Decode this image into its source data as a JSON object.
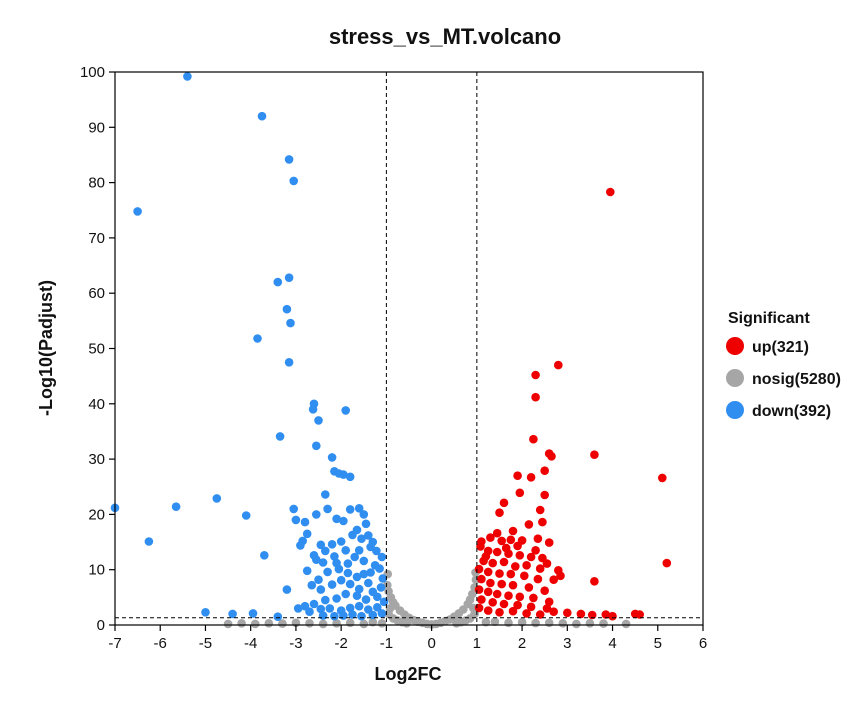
{
  "colors": {
    "up": "#ee0000",
    "nosig": "#a6a6a6",
    "down": "#2f8ef0",
    "axis": "#000000",
    "threshold_line": "#000000"
  },
  "chart_data": {
    "type": "scatter",
    "title": "stress_vs_MT.volcano",
    "xlabel": "Log2FC",
    "ylabel": "-Log10(Padjust)",
    "xlim": [
      -7,
      6
    ],
    "ylim": [
      0,
      100
    ],
    "xticks": [
      -7,
      -6,
      -5,
      -4,
      -3,
      -2,
      -1,
      0,
      1,
      2,
      3,
      4,
      5,
      6
    ],
    "yticks": [
      0,
      10,
      20,
      30,
      40,
      50,
      60,
      70,
      80,
      90,
      100
    ],
    "thresholds": {
      "log2fc": [
        -1,
        1
      ],
      "neg_log10_padj": 1.3
    },
    "legend": {
      "title": "Significant",
      "position": "right",
      "entries": [
        {
          "key": "up",
          "label": "up(321)"
        },
        {
          "key": "nosig",
          "label": "nosig(5280)"
        },
        {
          "key": "down",
          "label": "down(392)"
        }
      ]
    },
    "series": [
      {
        "name": "down",
        "points": [
          [
            -5.4,
            99.2
          ],
          [
            -3.75,
            92
          ],
          [
            -3.15,
            84.2
          ],
          [
            -3.05,
            80.3
          ],
          [
            -6.5,
            74.8
          ],
          [
            -3.15,
            62.8
          ],
          [
            -3.4,
            62
          ],
          [
            -3.2,
            57.1
          ],
          [
            -3.12,
            54.6
          ],
          [
            -3.85,
            51.8
          ],
          [
            -3.15,
            47.5
          ],
          [
            -2.6,
            40
          ],
          [
            -2.62,
            39
          ],
          [
            -1.9,
            38.8
          ],
          [
            -2.5,
            37
          ],
          [
            -3.35,
            34.1
          ],
          [
            -2.55,
            32.4
          ],
          [
            -2.2,
            30.3
          ],
          [
            -2.15,
            27.8
          ],
          [
            -2.05,
            27.4
          ],
          [
            -1.95,
            27.2
          ],
          [
            -1.8,
            26.8
          ],
          [
            -4.75,
            22.9
          ],
          [
            -7.0,
            21.2
          ],
          [
            -5.65,
            21.4
          ],
          [
            -4.1,
            19.8
          ],
          [
            -6.25,
            15.1
          ],
          [
            -3.7,
            12.6
          ],
          [
            -5.0,
            2.3
          ],
          [
            -4.4,
            2.0
          ],
          [
            -3.95,
            2.1
          ],
          [
            -3.4,
            1.5
          ],
          [
            -3.05,
            21
          ],
          [
            -3.0,
            19
          ],
          [
            -2.8,
            18.6
          ],
          [
            -2.75,
            16.5
          ],
          [
            -2.85,
            15.2
          ],
          [
            -2.9,
            14.4
          ],
          [
            -2.55,
            20
          ],
          [
            -2.35,
            23.6
          ],
          [
            -2.3,
            21
          ],
          [
            -2.1,
            19.2
          ],
          [
            -1.95,
            18.8
          ],
          [
            -1.8,
            20.9
          ],
          [
            -1.6,
            21.1
          ],
          [
            -1.5,
            20
          ],
          [
            -1.45,
            18.3
          ],
          [
            -1.65,
            17.2
          ],
          [
            -1.4,
            16.2
          ],
          [
            -1.3,
            15
          ],
          [
            -1.55,
            15.6
          ],
          [
            -1.75,
            16.3
          ],
          [
            -2.0,
            15.1
          ],
          [
            -2.2,
            14.6
          ],
          [
            -2.45,
            14.5
          ],
          [
            -2.6,
            12.6
          ],
          [
            -2.4,
            11.3
          ],
          [
            -2.15,
            12.4
          ],
          [
            -1.9,
            13.5
          ],
          [
            -1.7,
            12.3
          ],
          [
            -1.5,
            11.6
          ],
          [
            -1.25,
            10.8
          ],
          [
            -1.15,
            10.2
          ],
          [
            -1.08,
            8.4
          ],
          [
            -1.12,
            6.8
          ],
          [
            -1.2,
            5.1
          ],
          [
            -1.35,
            9.5
          ],
          [
            -1.5,
            9.2
          ],
          [
            -1.65,
            8.7
          ],
          [
            -1.85,
            9.4
          ],
          [
            -2.05,
            10.1
          ],
          [
            -2.3,
            9.6
          ],
          [
            -2.5,
            8.2
          ],
          [
            -2.65,
            7.2
          ],
          [
            -2.45,
            6.4
          ],
          [
            -2.2,
            7.3
          ],
          [
            -2.0,
            8.1
          ],
          [
            -1.8,
            7.4
          ],
          [
            -1.6,
            6.5
          ],
          [
            -1.4,
            7.6
          ],
          [
            -1.3,
            6.0
          ],
          [
            -1.45,
            4.6
          ],
          [
            -1.65,
            5.3
          ],
          [
            -1.9,
            5.6
          ],
          [
            -2.1,
            4.8
          ],
          [
            -2.35,
            4.5
          ],
          [
            -2.6,
            3.8
          ],
          [
            -2.8,
            3.4
          ],
          [
            -3.2,
            6.4
          ],
          [
            -2.95,
            3.0
          ],
          [
            -2.7,
            2.4
          ],
          [
            -2.45,
            2.9
          ],
          [
            -2.25,
            3.0
          ],
          [
            -2.0,
            2.6
          ],
          [
            -1.8,
            3.1
          ],
          [
            -1.6,
            3.4
          ],
          [
            -1.4,
            2.8
          ],
          [
            -1.2,
            3.2
          ],
          [
            -1.1,
            2.1
          ],
          [
            -1.3,
            1.8
          ],
          [
            -1.55,
            1.6
          ],
          [
            -1.75,
            1.9
          ],
          [
            -1.95,
            1.7
          ],
          [
            -2.15,
            1.6
          ],
          [
            -2.4,
            1.7
          ],
          [
            -1.05,
            4.2
          ],
          [
            -1.1,
            12.3
          ],
          [
            -1.22,
            13.4
          ],
          [
            -1.35,
            14.1
          ],
          [
            -1.6,
            13.5
          ],
          [
            -1.85,
            11.1
          ],
          [
            -2.1,
            11.2
          ],
          [
            -2.35,
            13.4
          ],
          [
            -2.55,
            11.8
          ],
          [
            -2.75,
            9.8
          ]
        ]
      },
      {
        "name": "up",
        "points": [
          [
            3.95,
            78.3
          ],
          [
            2.8,
            47
          ],
          [
            2.3,
            45.2
          ],
          [
            2.3,
            41.2
          ],
          [
            2.25,
            33.6
          ],
          [
            2.6,
            31
          ],
          [
            2.65,
            30.5
          ],
          [
            3.6,
            30.8
          ],
          [
            5.1,
            26.6
          ],
          [
            2.5,
            27.9
          ],
          [
            1.9,
            27
          ],
          [
            2.2,
            26.7
          ],
          [
            1.95,
            23.9
          ],
          [
            2.5,
            23.5
          ],
          [
            1.6,
            22.1
          ],
          [
            2.4,
            20.8
          ],
          [
            1.5,
            20.3
          ],
          [
            2.45,
            18.6
          ],
          [
            5.2,
            11.2
          ],
          [
            3.6,
            7.9
          ],
          [
            2.85,
            8.9
          ],
          [
            2.15,
            18.2
          ],
          [
            1.8,
            17
          ],
          [
            1.45,
            16.6
          ],
          [
            1.3,
            15.8
          ],
          [
            1.1,
            15.1
          ],
          [
            1.55,
            15.2
          ],
          [
            1.75,
            15.4
          ],
          [
            2.0,
            15.3
          ],
          [
            2.35,
            15.6
          ],
          [
            2.6,
            14.9
          ],
          [
            1.25,
            13.4
          ],
          [
            1.45,
            13.2
          ],
          [
            1.7,
            12.9
          ],
          [
            1.95,
            12.6
          ],
          [
            2.2,
            12.3
          ],
          [
            2.45,
            12.1
          ],
          [
            1.15,
            11.6
          ],
          [
            1.35,
            11.2
          ],
          [
            1.6,
            11.4
          ],
          [
            1.85,
            10.6
          ],
          [
            2.1,
            10.8
          ],
          [
            2.4,
            10.2
          ],
          [
            1.05,
            10.1
          ],
          [
            1.25,
            9.6
          ],
          [
            1.5,
            9.3
          ],
          [
            1.75,
            9.2
          ],
          [
            2.05,
            8.9
          ],
          [
            2.35,
            8.3
          ],
          [
            2.7,
            8.2
          ],
          [
            1.1,
            8.3
          ],
          [
            1.3,
            7.6
          ],
          [
            1.55,
            7.4
          ],
          [
            1.8,
            7.2
          ],
          [
            2.15,
            6.8
          ],
          [
            2.5,
            6.2
          ],
          [
            1.05,
            6.4
          ],
          [
            1.25,
            6.0
          ],
          [
            1.45,
            5.6
          ],
          [
            1.7,
            5.3
          ],
          [
            1.95,
            5.1
          ],
          [
            2.25,
            4.9
          ],
          [
            2.6,
            4.2
          ],
          [
            1.1,
            4.6
          ],
          [
            1.35,
            4.1
          ],
          [
            1.6,
            3.8
          ],
          [
            1.9,
            3.6
          ],
          [
            2.2,
            3.3
          ],
          [
            2.55,
            3.0
          ],
          [
            1.05,
            3.1
          ],
          [
            1.25,
            2.6
          ],
          [
            1.5,
            2.3
          ],
          [
            1.8,
            2.5
          ],
          [
            2.1,
            2.1
          ],
          [
            2.4,
            1.9
          ],
          [
            2.7,
            2.4
          ],
          [
            3.0,
            2.2
          ],
          [
            3.3,
            2.0
          ],
          [
            3.55,
            1.8
          ],
          [
            3.85,
            1.9
          ],
          [
            4.0,
            1.6
          ],
          [
            4.5,
            2.0
          ],
          [
            4.6,
            1.9
          ],
          [
            1.08,
            14.2
          ],
          [
            1.2,
            12.4
          ],
          [
            1.65,
            13.9
          ],
          [
            1.9,
            14.3
          ],
          [
            2.3,
            13.5
          ],
          [
            2.55,
            11.1
          ],
          [
            2.8,
            9.9
          ]
        ]
      },
      {
        "name": "nosig",
        "points": [
          [
            -4.5,
            0.2
          ],
          [
            -4.2,
            0.3
          ],
          [
            -3.9,
            0.2
          ],
          [
            -3.6,
            0.3
          ],
          [
            -3.3,
            0.25
          ],
          [
            -3.0,
            0.4
          ],
          [
            -2.7,
            0.3
          ],
          [
            -2.4,
            0.2
          ],
          [
            -2.1,
            0.3
          ],
          [
            -1.8,
            0.4
          ],
          [
            -1.5,
            0.2
          ],
          [
            -1.3,
            0.5
          ],
          [
            -1.1,
            0.3
          ],
          [
            3.2,
            0.2
          ],
          [
            3.5,
            0.3
          ],
          [
            3.8,
            0.25
          ],
          [
            4.3,
            0.2
          ],
          [
            2.9,
            0.3
          ],
          [
            2.6,
            0.4
          ],
          [
            2.3,
            0.35
          ],
          [
            2.0,
            0.5
          ],
          [
            1.7,
            0.4
          ],
          [
            1.4,
            0.6
          ],
          [
            1.2,
            0.5
          ],
          [
            -0.98,
            7.2
          ],
          [
            -0.95,
            6.1
          ],
          [
            -0.9,
            5.0
          ],
          [
            -0.85,
            4.1
          ],
          [
            -0.8,
            3.5
          ],
          [
            -0.7,
            2.6
          ],
          [
            -0.6,
            1.9
          ],
          [
            -0.5,
            1.3
          ],
          [
            -0.4,
            0.9
          ],
          [
            -0.3,
            0.6
          ],
          [
            -0.2,
            0.4
          ],
          [
            -0.1,
            0.2
          ],
          [
            0.0,
            0.1
          ],
          [
            0.1,
            0.2
          ],
          [
            0.2,
            0.4
          ],
          [
            0.3,
            0.7
          ],
          [
            0.4,
            1.0
          ],
          [
            0.5,
            1.5
          ],
          [
            0.6,
            2.1
          ],
          [
            0.7,
            2.8
          ],
          [
            0.8,
            3.8
          ],
          [
            0.85,
            4.6
          ],
          [
            0.9,
            5.6
          ],
          [
            0.95,
            6.8
          ],
          [
            0.98,
            8.2
          ],
          [
            -0.95,
            2.0
          ],
          [
            -0.85,
            1.2
          ],
          [
            -0.75,
            0.8
          ],
          [
            -0.65,
            0.5
          ],
          [
            -0.55,
            0.3
          ],
          [
            0.55,
            0.3
          ],
          [
            0.65,
            0.5
          ],
          [
            0.75,
            0.8
          ],
          [
            0.85,
            1.2
          ],
          [
            0.95,
            2.0
          ],
          [
            -0.97,
            9.2
          ],
          [
            -0.92,
            3.0
          ],
          [
            0.92,
            3.1
          ],
          [
            0.97,
            9.5
          ]
        ]
      }
    ]
  }
}
